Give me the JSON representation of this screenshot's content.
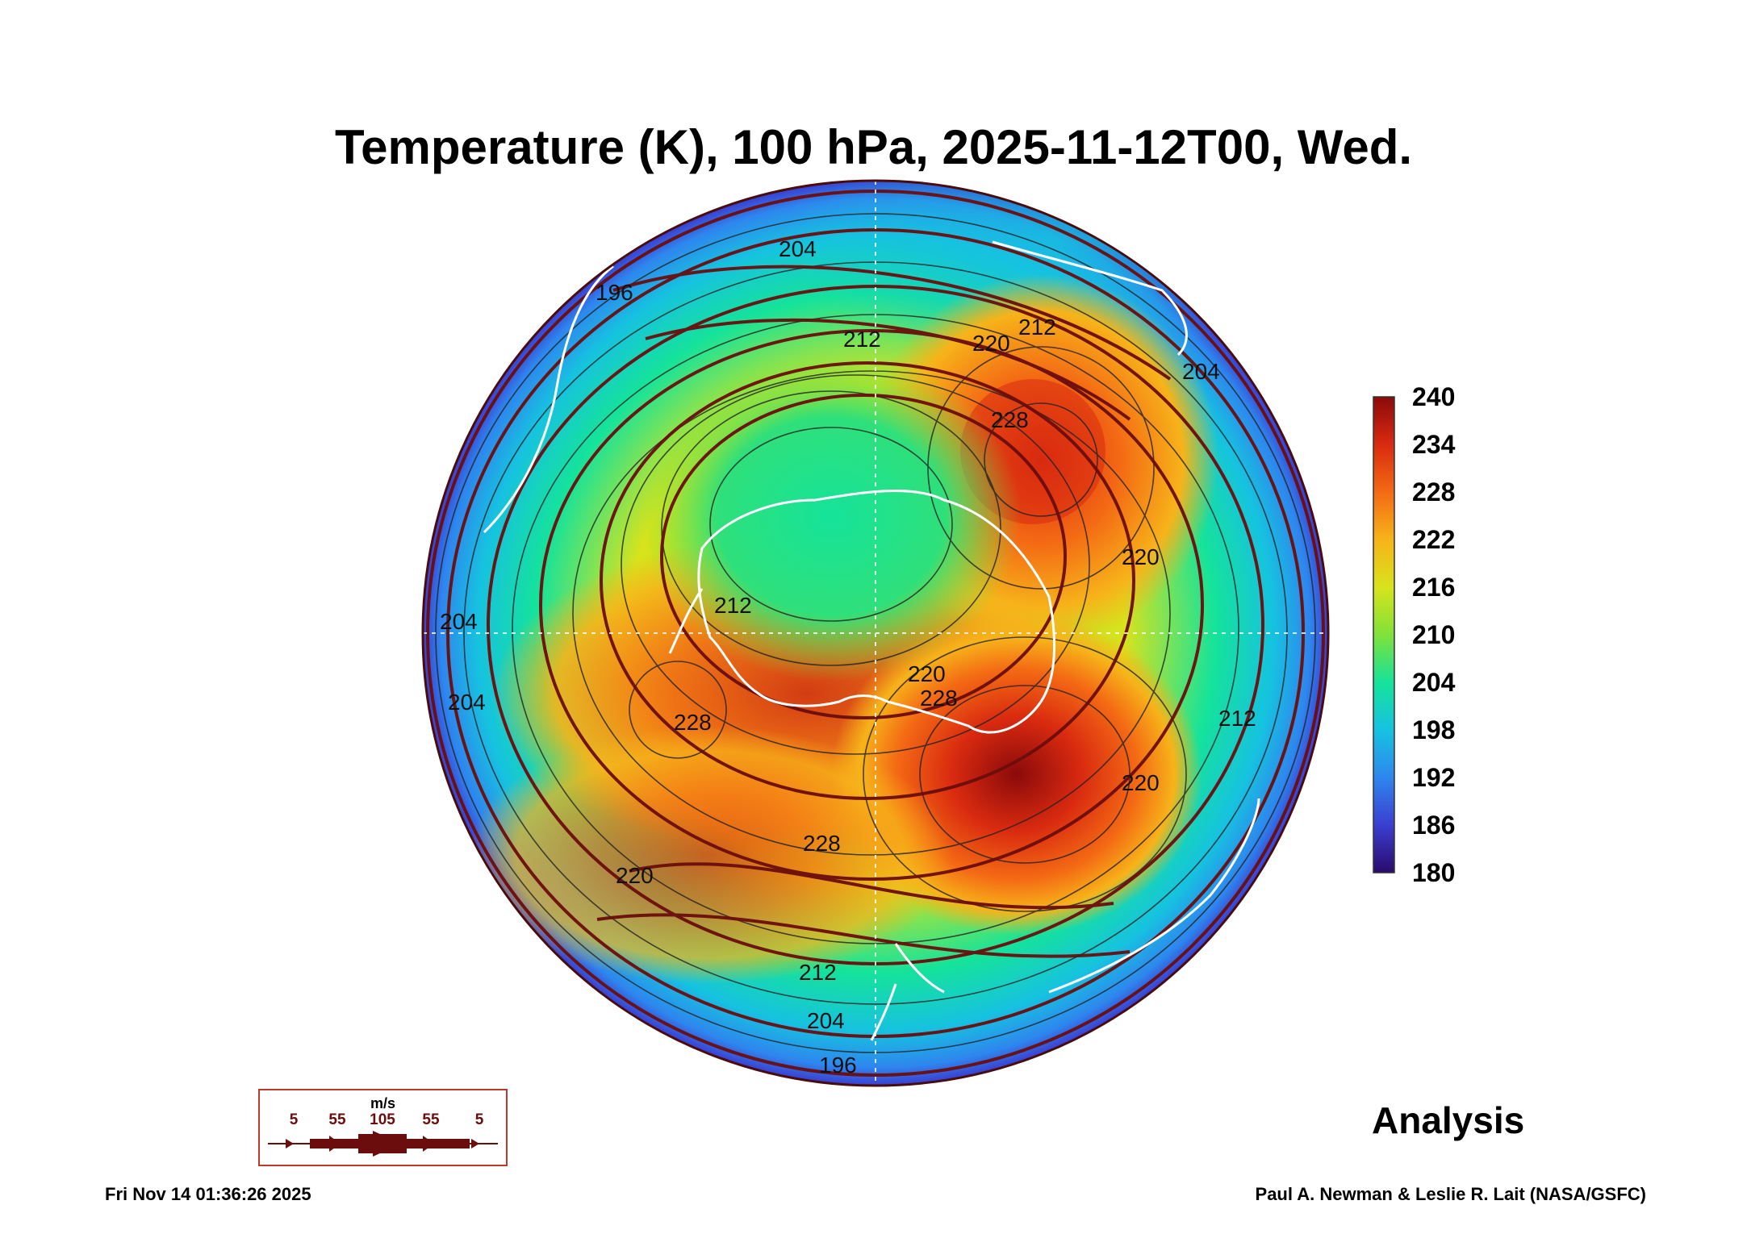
{
  "title": "Temperature (K), 100 hPa, 2025-11-12T00, Wed.",
  "colorbar": {
    "ticks": [
      "240",
      "234",
      "228",
      "222",
      "216",
      "210",
      "204",
      "198",
      "192",
      "186",
      "180"
    ],
    "min": 180,
    "max": 240,
    "unit": "K",
    "colors": [
      "#2a0a6b",
      "#3a3fd1",
      "#2e86ee",
      "#16c2e0",
      "#15e39a",
      "#7fe23a",
      "#d8e31c",
      "#f7b31a",
      "#f46a14",
      "#d92a10",
      "#8b0a0a"
    ]
  },
  "map": {
    "projection": "south polar stereographic",
    "contour_labels": [
      "204",
      "196",
      "212",
      "220",
      "212",
      "228",
      "204",
      "204",
      "204",
      "212",
      "212",
      "220",
      "228",
      "228",
      "220",
      "228",
      "212",
      "220",
      "204",
      "196",
      "220"
    ],
    "coastline_color": "#ffffff",
    "streamline_color": "#6b0d0d"
  },
  "wind_legend": {
    "unit": "m/s",
    "speeds": [
      "5",
      "55",
      "105",
      "55",
      "5"
    ]
  },
  "footer": {
    "product": "Analysis",
    "timestamp": "Fri Nov 14 01:36:26 2025",
    "credits": "Paul A. Newman & Leslie R. Lait (NASA/GSFC)"
  }
}
